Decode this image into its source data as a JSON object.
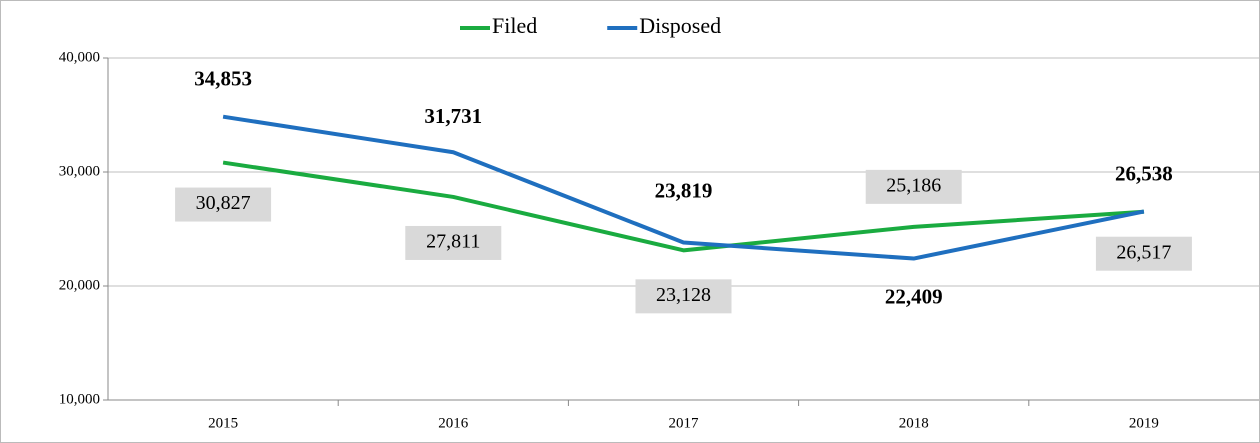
{
  "chart_data": {
    "type": "line",
    "categories": [
      "2015",
      "2016",
      "2017",
      "2018",
      "2019"
    ],
    "series": [
      {
        "name": "Filed",
        "color": "#1aab40",
        "values": [
          30827,
          27811,
          23128,
          25186,
          26517
        ],
        "value_labels": [
          "30,827",
          "27,811",
          "23,128",
          "25,186",
          "26,517"
        ]
      },
      {
        "name": "Disposed",
        "color": "#1f6fbf",
        "values": [
          34853,
          31731,
          23819,
          22409,
          26538
        ],
        "value_labels": [
          "34,853",
          "31,731",
          "23,819",
          "22,409",
          "26,538"
        ]
      }
    ],
    "ylim": [
      10000,
      40000
    ],
    "yticks": [
      {
        "value": 10000,
        "label": "10,000"
      },
      {
        "value": 20000,
        "label": "20,000"
      },
      {
        "value": 30000,
        "label": "30,000"
      },
      {
        "value": 40000,
        "label": "40,000"
      }
    ],
    "grid": true,
    "legend": "top"
  }
}
